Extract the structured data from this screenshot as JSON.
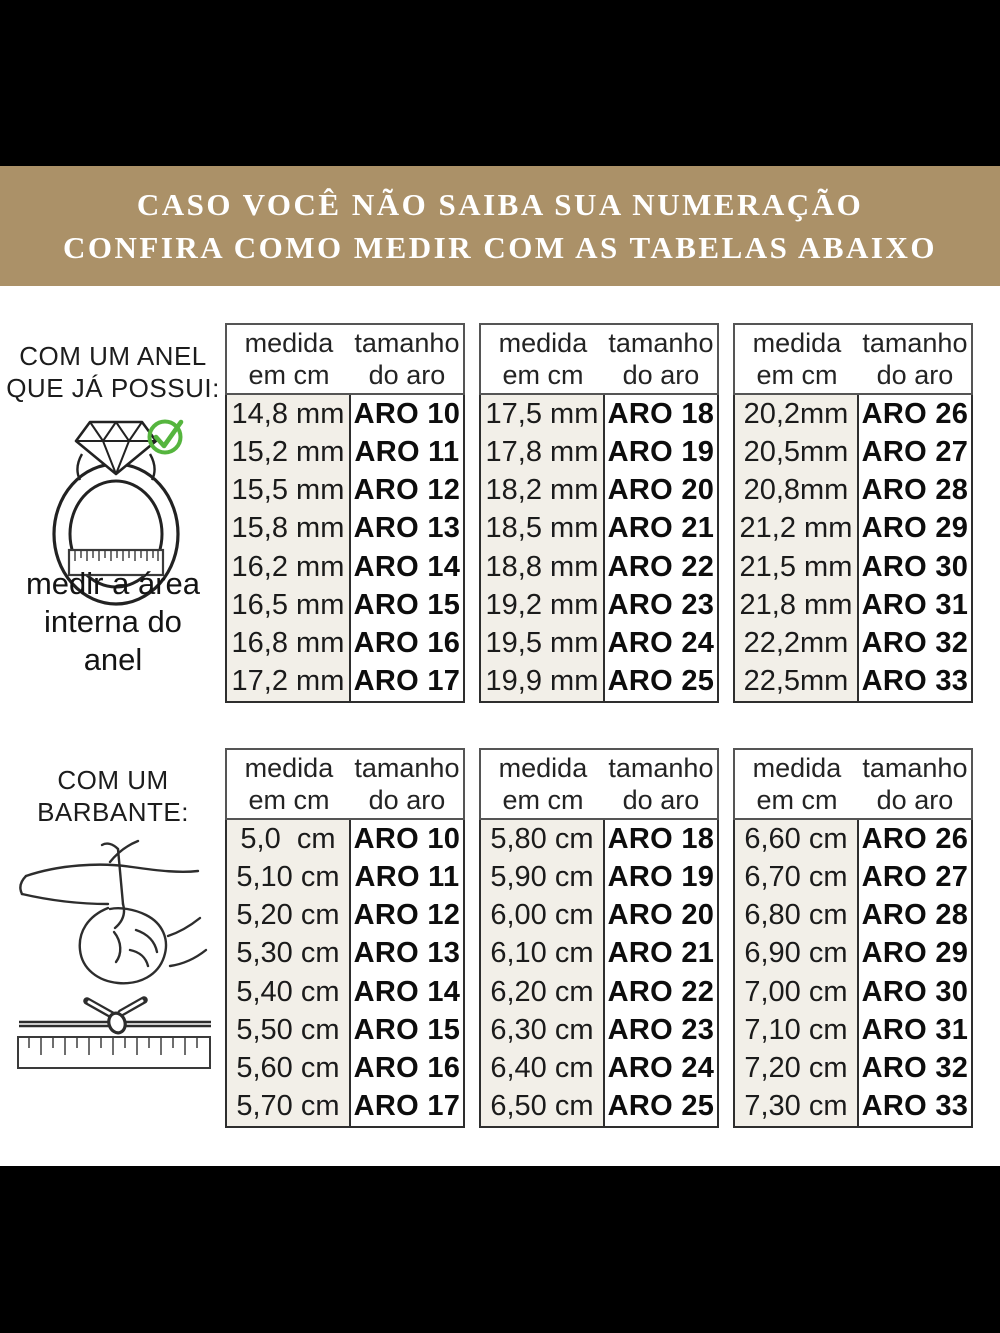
{
  "banner": {
    "line1": "CASO VOCÊ NÃO SAIBA SUA NUMERAÇÃO",
    "line2": "CONFIRA COMO MEDIR COM AS TABELAS ABAIXO"
  },
  "sections": [
    {
      "label_lines": [
        "COM UM ANEL",
        "QUE JÁ POSSUI:"
      ],
      "caption_lines": [
        "medir a área",
        "interna do",
        "anel"
      ],
      "icons": [
        "ring-measure-icon",
        "check-circle-icon"
      ]
    },
    {
      "label_lines": [
        "COM UM",
        "BARBANTE:"
      ],
      "caption_lines": [],
      "icons": [
        "hand-string-icon",
        "string-knot-ruler-icon"
      ]
    }
  ],
  "table_header": {
    "col1_line1": "medida",
    "col1_line2": "em cm",
    "col2_line1": "tamanho",
    "col2_line2": "do aro"
  },
  "tables": [
    {
      "group": "anel",
      "rows": [
        [
          "14,8 mm",
          "ARO 10"
        ],
        [
          "15,2 mm",
          "ARO 11"
        ],
        [
          "15,5 mm",
          "ARO 12"
        ],
        [
          "15,8 mm",
          "ARO 13"
        ],
        [
          "16,2 mm",
          "ARO 14"
        ],
        [
          "16,5 mm",
          "ARO 15"
        ],
        [
          "16,8 mm",
          "ARO 16"
        ],
        [
          "17,2 mm",
          "ARO 17"
        ]
      ]
    },
    {
      "group": "anel",
      "rows": [
        [
          "17,5 mm",
          "ARO 18"
        ],
        [
          "17,8 mm",
          "ARO 19"
        ],
        [
          "18,2 mm",
          "ARO 20"
        ],
        [
          "18,5 mm",
          "ARO 21"
        ],
        [
          "18,8 mm",
          "ARO 22"
        ],
        [
          "19,2 mm",
          "ARO 23"
        ],
        [
          "19,5 mm",
          "ARO 24"
        ],
        [
          "19,9 mm",
          "ARO 25"
        ]
      ]
    },
    {
      "group": "anel",
      "rows": [
        [
          "20,2mm",
          "ARO 26"
        ],
        [
          "20,5mm",
          "ARO 27"
        ],
        [
          "20,8mm",
          "ARO 28"
        ],
        [
          "21,2 mm",
          "ARO 29"
        ],
        [
          "21,5 mm",
          "ARO 30"
        ],
        [
          "21,8 mm",
          "ARO 31"
        ],
        [
          "22,2mm",
          "ARO 32"
        ],
        [
          "22,5mm",
          "ARO 33"
        ]
      ]
    },
    {
      "group": "barbante",
      "rows": [
        [
          "5,0  cm",
          "ARO 10"
        ],
        [
          "5,10 cm",
          "ARO 11"
        ],
        [
          "5,20 cm",
          "ARO 12"
        ],
        [
          "5,30 cm",
          "ARO 13"
        ],
        [
          "5,40 cm",
          "ARO 14"
        ],
        [
          "5,50 cm",
          "ARO 15"
        ],
        [
          "5,60 cm",
          "ARO 16"
        ],
        [
          "5,70 cm",
          "ARO 17"
        ]
      ]
    },
    {
      "group": "barbante",
      "rows": [
        [
          "5,80 cm",
          "ARO 18"
        ],
        [
          "5,90 cm",
          "ARO 19"
        ],
        [
          "6,00 cm",
          "ARO 20"
        ],
        [
          "6,10 cm",
          "ARO 21"
        ],
        [
          "6,20 cm",
          "ARO 22"
        ],
        [
          "6,30 cm",
          "ARO 23"
        ],
        [
          "6,40 cm",
          "ARO 24"
        ],
        [
          "6,50 cm",
          "ARO 25"
        ]
      ]
    },
    {
      "group": "barbante",
      "rows": [
        [
          "6,60 cm",
          "ARO 26"
        ],
        [
          "6,70 cm",
          "ARO 27"
        ],
        [
          "6,80 cm",
          "ARO 28"
        ],
        [
          "6,90 cm",
          "ARO 29"
        ],
        [
          "7,00 cm",
          "ARO 30"
        ],
        [
          "7,10 cm",
          "ARO 31"
        ],
        [
          "7,20 cm",
          "ARO 32"
        ],
        [
          "7,30 cm",
          "ARO 33"
        ]
      ]
    }
  ],
  "colors": {
    "banner_bg": "#ab9168",
    "banner_text": "#ffffff",
    "bar": "#000000",
    "table_measure_col_bg": "#f2efe8",
    "table_border": "#2e2e2e",
    "check_green": "#55b53e"
  }
}
